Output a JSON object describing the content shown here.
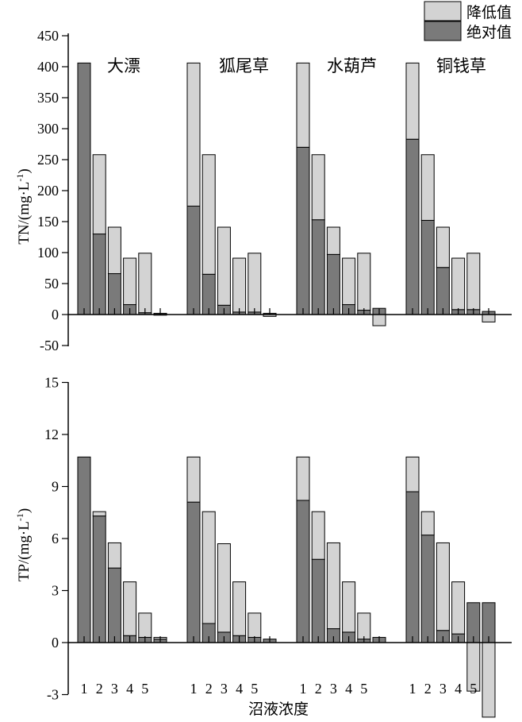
{
  "legend": {
    "entries": [
      {
        "label": "降低值",
        "color": "#d3d3d3"
      },
      {
        "label": "绝对值",
        "color": "#7a7a7a"
      }
    ]
  },
  "colors": {
    "reduction": "#d3d3d3",
    "absolute": "#7a7a7a"
  },
  "xlabel": "沼液浓度",
  "chart_data": [
    {
      "type": "bar",
      "title": "",
      "ylabel_main": "TN/(mg·L",
      "ylabel_sup": "-1",
      "ylabel_close": ")",
      "ylim": [
        -50,
        450
      ],
      "yticks": [
        -50,
        0,
        50,
        100,
        150,
        200,
        250,
        300,
        350,
        400,
        450
      ],
      "groups": [
        "大漂",
        "狐尾草",
        "水葫芦",
        "铜钱草"
      ],
      "categories": [
        "1",
        "2",
        "3",
        "4",
        "5",
        ""
      ],
      "series": [
        {
          "name": "绝对值",
          "values": [
            [
              406,
              130,
              66,
              16,
              3,
              2
            ],
            [
              175,
              65,
              15,
              4,
              4,
              2
            ],
            [
              270,
              153,
              97,
              16,
              7,
              10
            ],
            [
              283,
              152,
              76,
              8,
              8,
              5
            ]
          ]
        },
        {
          "name": "降低值",
          "values": [
            [
              0,
              128,
              75,
              75,
              96,
              -1
            ],
            [
              231,
              193,
              126,
              87,
              95,
              -3
            ],
            [
              136,
              105,
              44,
              75,
              92,
              -18
            ],
            [
              123,
              106,
              65,
              83,
              91,
              -12
            ]
          ]
        }
      ]
    },
    {
      "type": "bar",
      "title": "",
      "ylabel_main": "TP/(mg·L",
      "ylabel_sup": "-1",
      "ylabel_close": ")",
      "ylim": [
        -3,
        15
      ],
      "yticks": [
        -3,
        0,
        3,
        6,
        9,
        12,
        15
      ],
      "groups": [
        "",
        "",
        "",
        ""
      ],
      "categories": [
        "1",
        "2",
        "3",
        "4",
        "5",
        ""
      ],
      "series": [
        {
          "name": "绝对值",
          "values": [
            [
              10.7,
              7.3,
              4.3,
              0.4,
              0.3,
              0.2
            ],
            [
              8.1,
              1.1,
              0.6,
              0.4,
              0.3,
              0.2
            ],
            [
              8.2,
              4.8,
              0.8,
              0.6,
              0.2,
              0.3
            ],
            [
              8.7,
              6.2,
              0.7,
              0.5,
              2.3,
              2.3
            ]
          ]
        },
        {
          "name": "降低值",
          "values": [
            [
              0,
              0.25,
              1.45,
              3.1,
              1.4,
              0.1
            ],
            [
              2.6,
              6.45,
              5.1,
              3.1,
              1.4,
              0
            ],
            [
              2.5,
              2.75,
              4.95,
              2.9,
              1.5,
              0
            ],
            [
              2.0,
              1.35,
              5.05,
              3.0,
              -2.8,
              -4.3
            ]
          ]
        }
      ],
      "x_tick_labels": [
        "1",
        "2",
        "3",
        "4",
        "5"
      ]
    }
  ]
}
